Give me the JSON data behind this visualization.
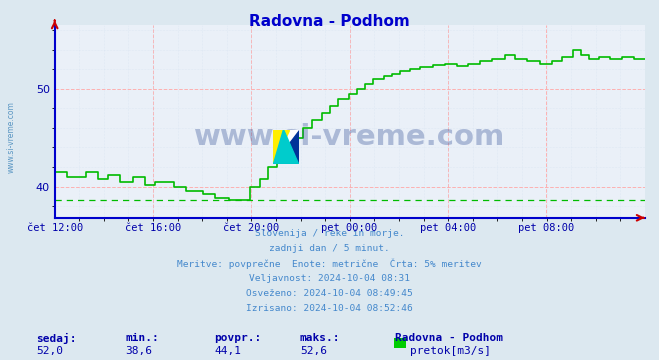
{
  "title": "Radovna - Podhom",
  "title_color": "#0000cc",
  "bg_color": "#dce8f0",
  "plot_bg_color": "#eaf0f8",
  "line_color": "#00bb00",
  "line_width": 1.2,
  "min_line_value": 38.6,
  "min_line_color": "#00bb00",
  "ylim": [
    36.8,
    56.5
  ],
  "yticks": [
    40,
    50
  ],
  "xtick_color": "#0000aa",
  "ytick_color": "#0000aa",
  "grid_color_major": "#ffaaaa",
  "grid_color_minor": "#ccddee",
  "watermark": "www.si-vreme.com",
  "watermark_color": "#1a3a8a",
  "watermark_alpha": 0.3,
  "watermark_fontsize": 22,
  "footer_lines": [
    "Slovenija / reke in morje.",
    "zadnji dan / 5 minut.",
    "Meritve: povprečne  Enote: metrične  Črta: 5% meritev",
    "Veljavnost: 2024-10-04 08:31",
    "Osveženo: 2024-10-04 08:49:45",
    "Izrisano: 2024-10-04 08:52:46"
  ],
  "footer_color": "#4488cc",
  "stats_labels": [
    "sedaj:",
    "min.:",
    "povpr.:",
    "maks.:"
  ],
  "stats_values": [
    "52,0",
    "38,6",
    "44,1",
    "52,6"
  ],
  "stats_color": "#0000aa",
  "legend_label": "Radovna - Podhom",
  "legend_sublabel": "pretok[m3/s]",
  "legend_color": "#00cc00",
  "xtick_labels": [
    "čet 12:00",
    "čet 16:00",
    "čet 20:00",
    "pet 00:00",
    "pet 04:00",
    "pet 08:00"
  ],
  "xtick_positions": [
    0.0,
    0.1667,
    0.3333,
    0.5,
    0.6667,
    0.8333
  ],
  "sidebar_text": "www.si-vreme.com",
  "sidebar_color": "#4488bb",
  "spine_color": "#0000cc",
  "axis_arrow_color": "#cc0000"
}
